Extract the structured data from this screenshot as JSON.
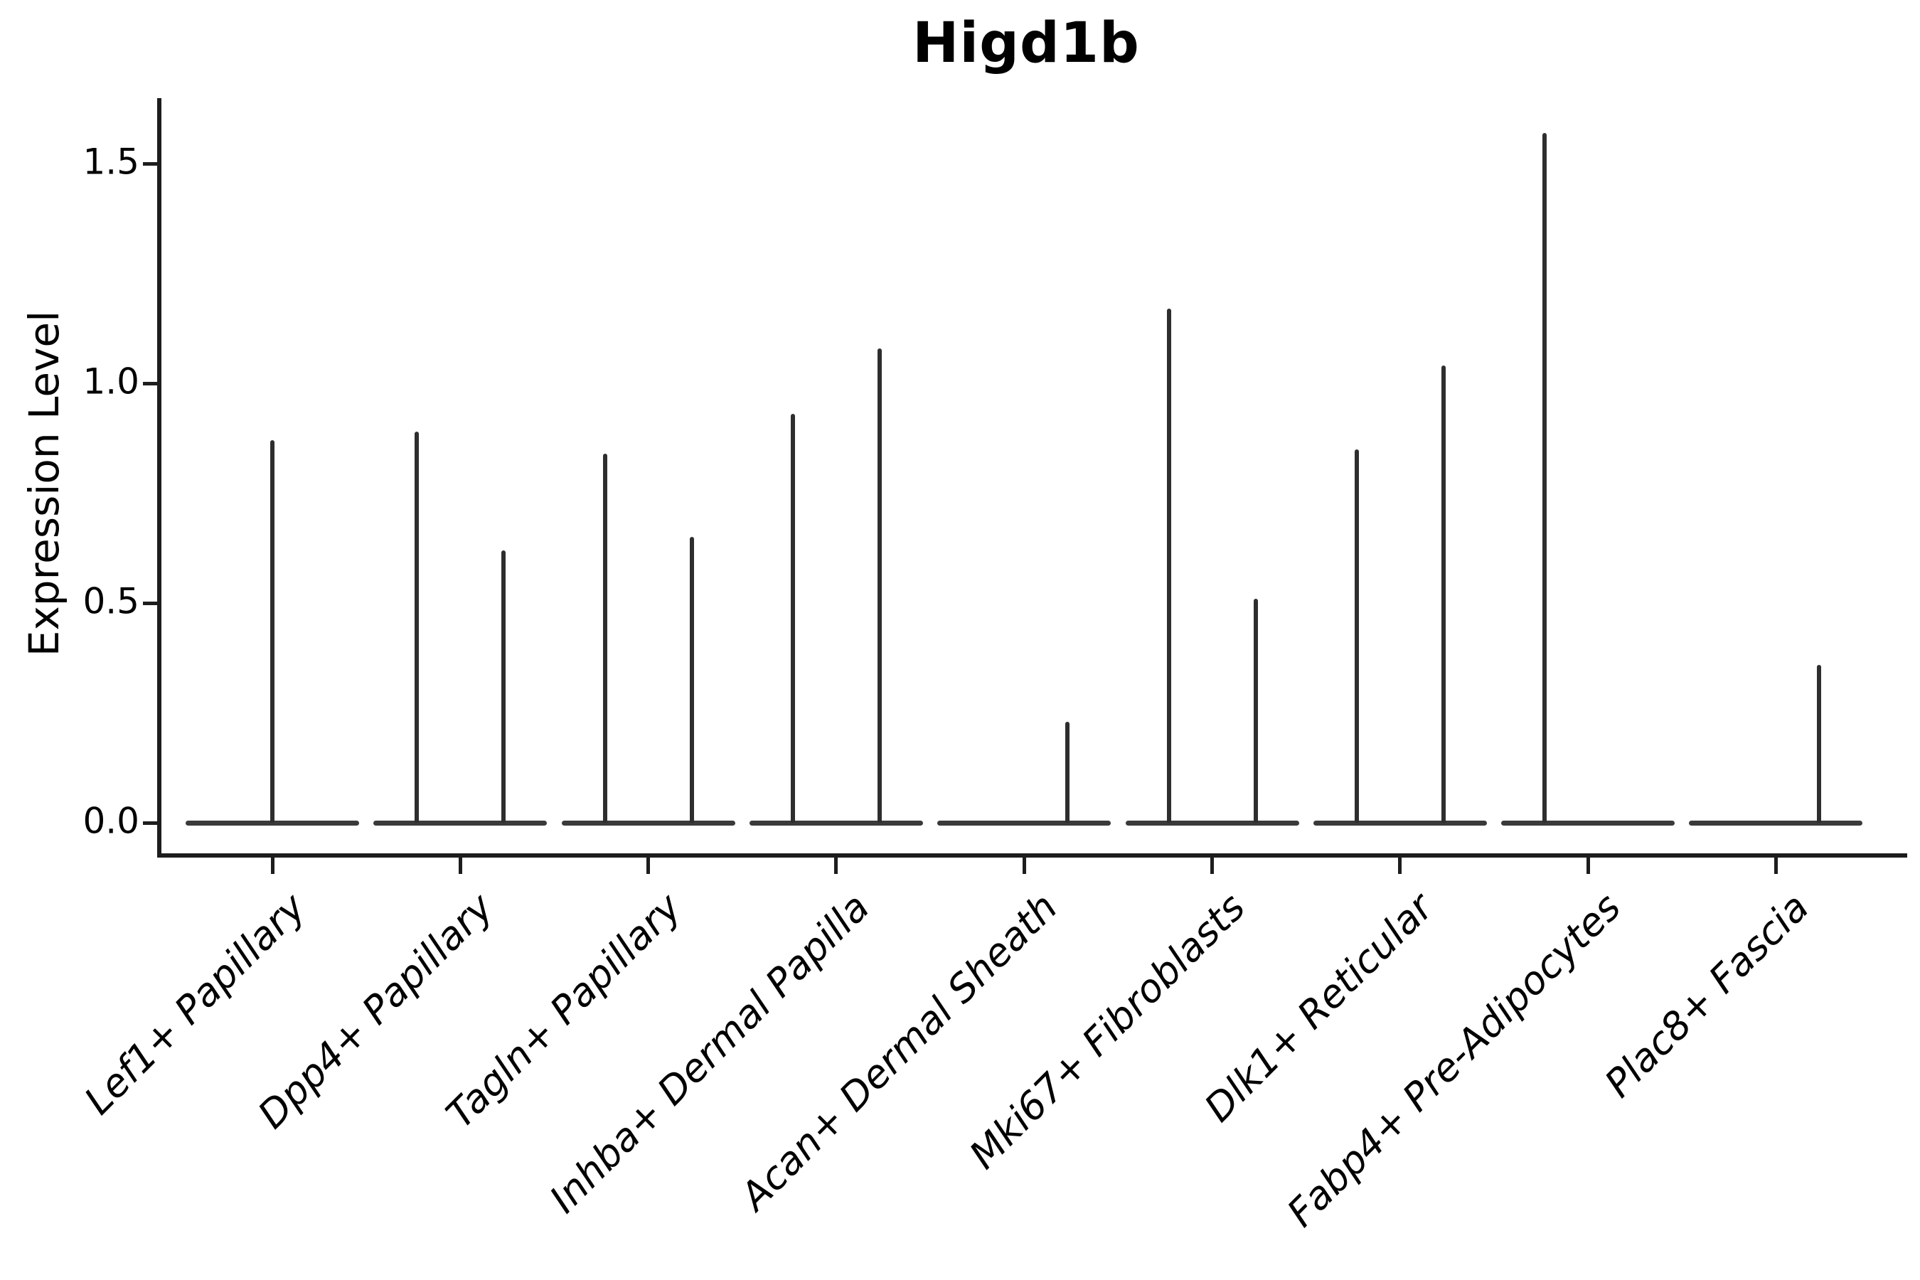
{
  "figure": {
    "title": "Higd1b",
    "y_axis_label": "Expression Level"
  },
  "colors": {
    "violin_stroke": "#2e2e2e",
    "violin_baseline": "#3a3a3a",
    "axis": "#1d1d1d",
    "text": "#000000",
    "background": "#ffffff"
  },
  "chart_data": {
    "type": "violin",
    "title": "Higd1b",
    "xlabel": "",
    "ylabel": "Expression Level",
    "ytick_labels": [
      "0.0",
      "0.5",
      "1.0",
      "1.5"
    ],
    "yticks": [
      0.0,
      0.5,
      1.0,
      1.5
    ],
    "ylim": [
      -0.07,
      1.65
    ],
    "legend": "none",
    "grid": false,
    "categories": [
      "Lef1+ Papillary",
      "Dpp4+ Papillary",
      "Tagln+ Papillary",
      "Inhba+ Dermal Papilla",
      "Acan+ Dermal Sheath",
      "Mki67+ Fibroblasts",
      "Dlk1+ Reticular",
      "Fabp4+ Pre-Adipocytes",
      "Plac8+ Fascia"
    ],
    "violins": [
      {
        "category": "Lef1+ Papillary",
        "slot": "full",
        "max_expression": 0.87
      },
      {
        "category": "Dpp4+ Papillary",
        "slot": "left",
        "max_expression": 0.89
      },
      {
        "category": "Dpp4+ Papillary",
        "slot": "right",
        "max_expression": 0.62
      },
      {
        "category": "Tagln+ Papillary",
        "slot": "left",
        "max_expression": 0.84
      },
      {
        "category": "Tagln+ Papillary",
        "slot": "right",
        "max_expression": 0.65
      },
      {
        "category": "Inhba+ Dermal Papilla",
        "slot": "left",
        "max_expression": 0.93
      },
      {
        "category": "Inhba+ Dermal Papilla",
        "slot": "right",
        "max_expression": 1.08
      },
      {
        "category": "Acan+ Dermal Sheath",
        "slot": "left",
        "max_expression": 0.0
      },
      {
        "category": "Acan+ Dermal Sheath",
        "slot": "right",
        "max_expression": 0.23
      },
      {
        "category": "Mki67+ Fibroblasts",
        "slot": "left",
        "max_expression": 1.17
      },
      {
        "category": "Mki67+ Fibroblasts",
        "slot": "right",
        "max_expression": 0.51
      },
      {
        "category": "Dlk1+ Reticular",
        "slot": "left",
        "max_expression": 0.85
      },
      {
        "category": "Dlk1+ Reticular",
        "slot": "right",
        "max_expression": 1.04
      },
      {
        "category": "Fabp4+ Pre-Adipocytes",
        "slot": "left",
        "max_expression": 1.57
      },
      {
        "category": "Fabp4+ Pre-Adipocytes",
        "slot": "right",
        "max_expression": 0.0
      },
      {
        "category": "Plac8+ Fascia",
        "slot": "left",
        "max_expression": 0.0
      },
      {
        "category": "Plac8+ Fascia",
        "slot": "right",
        "max_expression": 0.36
      }
    ]
  }
}
